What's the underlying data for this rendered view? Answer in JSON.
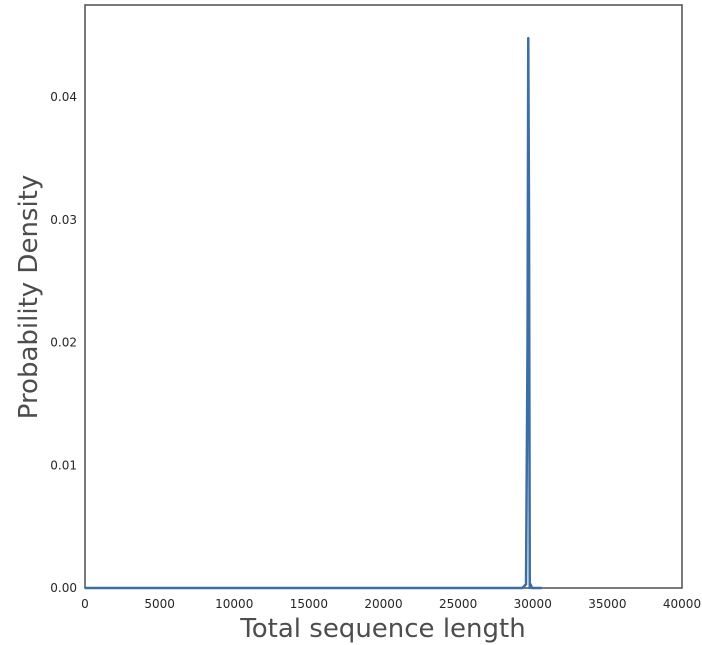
{
  "chart_data": {
    "type": "line",
    "title": "",
    "xlabel": "Total sequence length",
    "ylabel": "Probability Density",
    "xlim": [
      0,
      40000
    ],
    "ylim": [
      0,
      0.0475
    ],
    "xticks": [
      0,
      5000,
      10000,
      15000,
      20000,
      25000,
      30000,
      35000,
      40000
    ],
    "yticks": [
      0.0,
      0.01,
      0.02,
      0.03,
      0.04
    ],
    "xtick_labels": [
      "0",
      "5000",
      "10000",
      "15000",
      "20000",
      "25000",
      "30000",
      "35000",
      "40000"
    ],
    "ytick_labels": [
      "0.00",
      "0.01",
      "0.02",
      "0.03",
      "0.04"
    ],
    "grid": false,
    "series": [
      {
        "color": "#3a6ea5",
        "x": [
          0,
          29300,
          29550,
          29650,
          29700,
          29750,
          29800,
          29850,
          29950,
          30600
        ],
        "y": [
          0,
          0,
          0.0003,
          0.02,
          0.0448,
          0.03,
          0.0,
          0.0003,
          0,
          0
        ]
      }
    ]
  }
}
